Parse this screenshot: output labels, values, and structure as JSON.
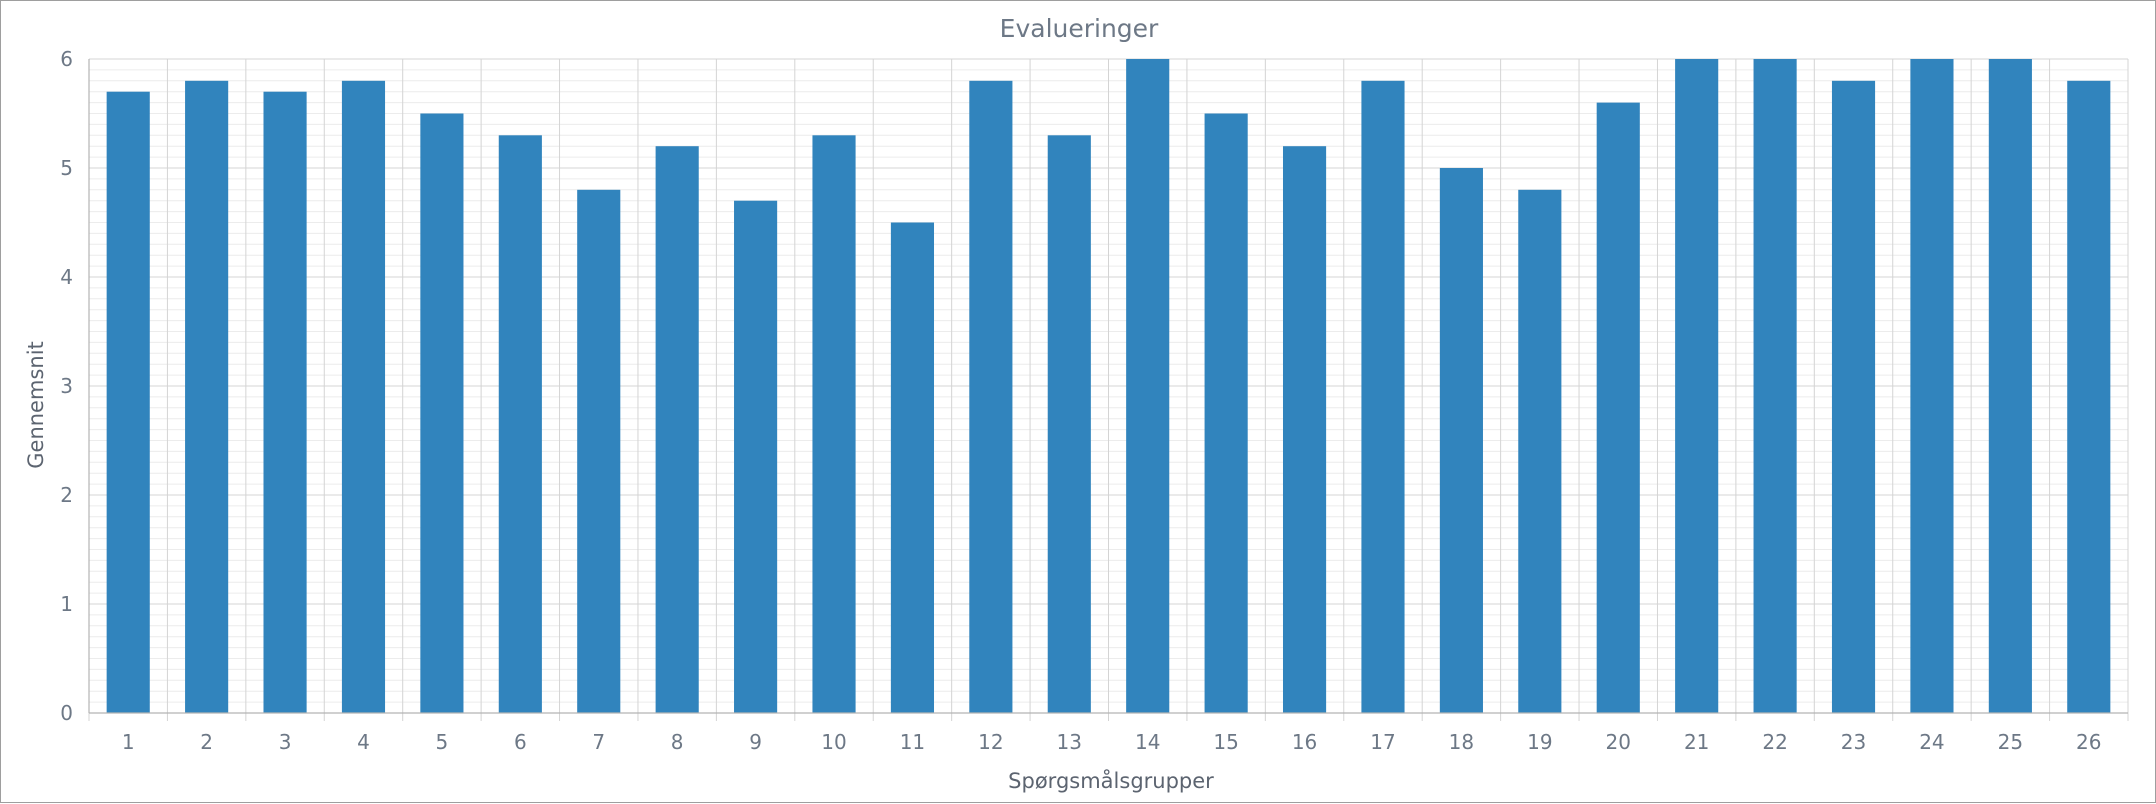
{
  "chart_data": {
    "type": "bar",
    "title": "Evalueringer",
    "xlabel": "Spørgsmålsgrupper",
    "ylabel": "Gennemsnit",
    "categories": [
      "1",
      "2",
      "3",
      "4",
      "5",
      "6",
      "7",
      "8",
      "9",
      "10",
      "11",
      "12",
      "13",
      "14",
      "15",
      "16",
      "17",
      "18",
      "19",
      "20",
      "21",
      "22",
      "23",
      "24",
      "25",
      "26"
    ],
    "values": [
      5.7,
      5.8,
      5.7,
      5.8,
      5.5,
      5.3,
      4.8,
      5.2,
      4.7,
      5.3,
      4.5,
      5.8,
      5.3,
      6.0,
      5.5,
      5.2,
      5.8,
      5.0,
      4.8,
      5.6,
      6.0,
      6.0,
      5.8,
      6.0,
      6.0,
      5.8
    ],
    "ylim": [
      0,
      6
    ],
    "yticks": [
      "0",
      "1",
      "2",
      "3",
      "4",
      "5",
      "6"
    ],
    "grid": true,
    "bar_color": "#3184bd"
  }
}
